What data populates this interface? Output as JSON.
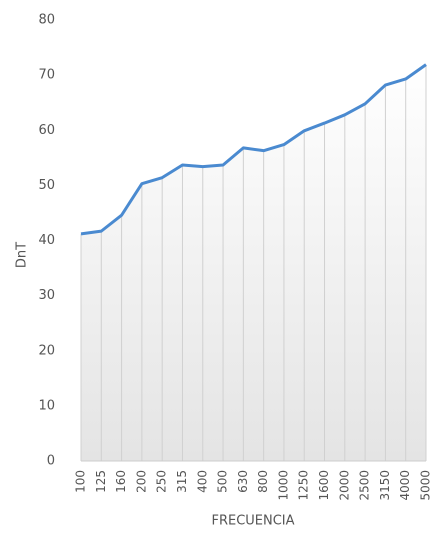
{
  "chart_data": {
    "type": "line",
    "categories": [
      "100",
      "125",
      "160",
      "200",
      "250",
      "315",
      "400",
      "500",
      "630",
      "800",
      "1000",
      "1250",
      "1600",
      "2000",
      "2500",
      "3150",
      "4000",
      "5000"
    ],
    "values": [
      41.2,
      41.7,
      44.6,
      50.3,
      51.4,
      53.7,
      53.4,
      53.7,
      56.8,
      56.3,
      57.4,
      59.9,
      61.3,
      62.8,
      64.8,
      68.2,
      69.3,
      71.9
    ],
    "color": "#4a8ad0",
    "ylim": [
      0,
      80
    ],
    "yticks": [
      0,
      10,
      20,
      30,
      40,
      50,
      60,
      70,
      80
    ],
    "ylabel": "DnT",
    "xlabel": "FRECUENCIA"
  }
}
